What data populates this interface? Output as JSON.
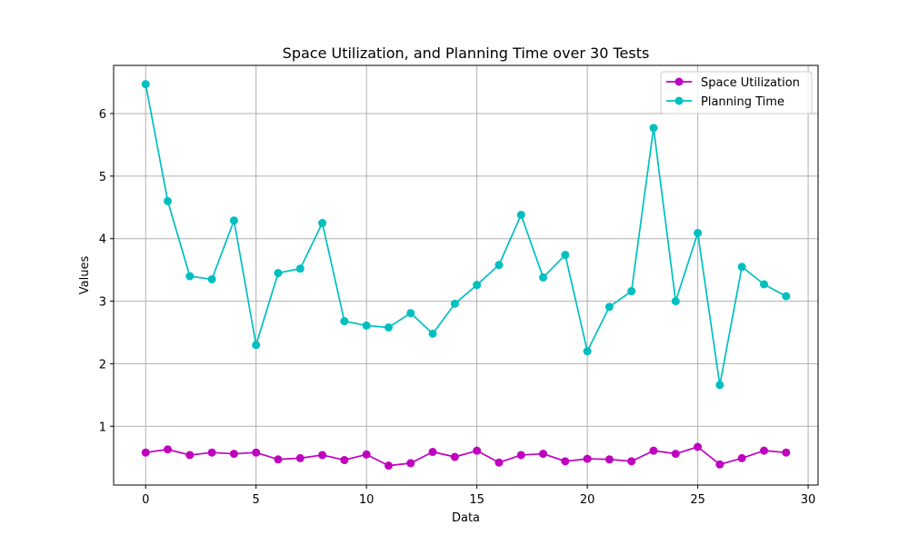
{
  "chart_data": {
    "type": "line",
    "title": "Space Utilization, and Planning Time over 30 Tests",
    "xlabel": "Data",
    "ylabel": "Values",
    "x": [
      0,
      1,
      2,
      3,
      4,
      5,
      6,
      7,
      8,
      9,
      10,
      11,
      12,
      13,
      14,
      15,
      16,
      17,
      18,
      19,
      20,
      21,
      22,
      23,
      24,
      25,
      26,
      27,
      28,
      29
    ],
    "xlim": [
      -1.45,
      30.45
    ],
    "ylim": [
      0.06,
      6.77
    ],
    "xticks": [
      0,
      5,
      10,
      15,
      20,
      25,
      30
    ],
    "yticks": [
      1,
      2,
      3,
      4,
      5,
      6
    ],
    "grid": true,
    "legend_position": "top-right",
    "series": [
      {
        "name": "Space Utilization",
        "color": "#bf00bf",
        "marker": "circle",
        "values": [
          0.58,
          0.63,
          0.54,
          0.58,
          0.56,
          0.58,
          0.47,
          0.49,
          0.54,
          0.46,
          0.55,
          0.37,
          0.41,
          0.59,
          0.51,
          0.61,
          0.42,
          0.54,
          0.56,
          0.44,
          0.48,
          0.47,
          0.44,
          0.61,
          0.56,
          0.67,
          0.39,
          0.49,
          0.61,
          0.58
        ]
      },
      {
        "name": "Planning Time",
        "color": "#00bfbf",
        "marker": "circle",
        "values": [
          6.47,
          4.6,
          3.4,
          3.35,
          4.29,
          2.3,
          3.45,
          3.52,
          4.25,
          2.68,
          2.61,
          2.58,
          2.81,
          2.48,
          2.96,
          3.26,
          3.58,
          4.38,
          3.38,
          3.74,
          2.2,
          2.91,
          3.16,
          5.77,
          3.0,
          4.09,
          1.66,
          3.55,
          3.27,
          3.08
        ]
      }
    ]
  }
}
